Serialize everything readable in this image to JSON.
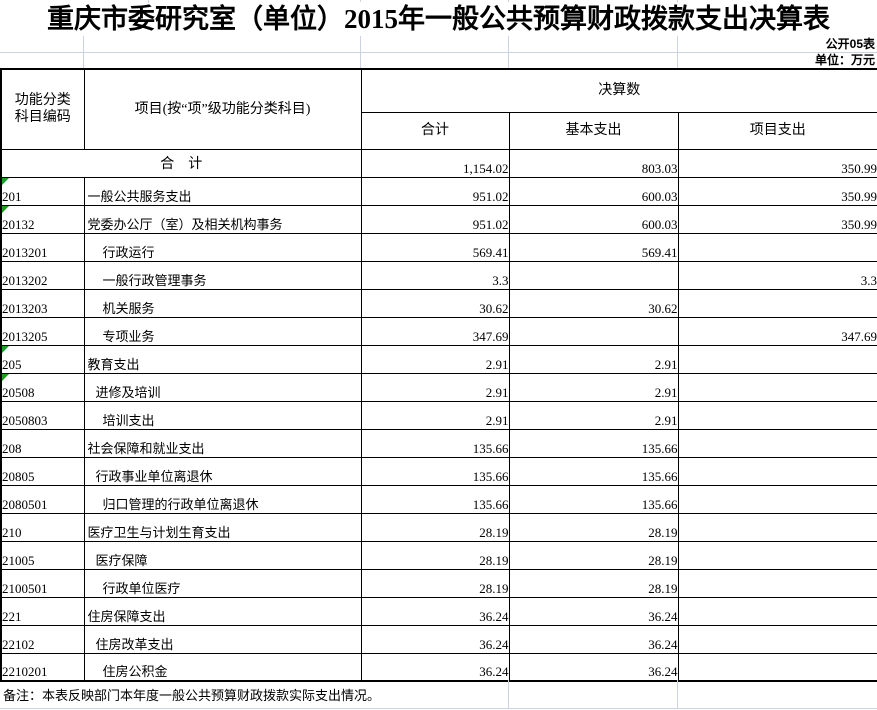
{
  "title": "重庆市委研究室（单位）2015年一般公共预算财政拨款支出决算表",
  "meta": {
    "table_no": "公开05表",
    "unit": "单位：万元"
  },
  "header": {
    "code_line1": "功能分类",
    "code_line2": "科目编码",
    "project": "项目(按“项”级功能分类科目)",
    "final_accounts": "决算数",
    "total": "合计",
    "basic": "基本支出",
    "project_exp": "项目支出"
  },
  "summary_row": {
    "label": "合　计",
    "total": "1,154.02",
    "basic": "803.03",
    "project": "350.99"
  },
  "rows": [
    {
      "code": "201",
      "name": "一般公共服务支出",
      "indent": 0,
      "marker": true,
      "total": "951.02",
      "basic": "600.03",
      "project": "350.99"
    },
    {
      "code": "20132",
      "name": "党委办公厅（室）及相关机构事务",
      "indent": 0,
      "marker": true,
      "total": "951.02",
      "basic": "600.03",
      "project": "350.99"
    },
    {
      "code": "2013201",
      "name": "行政运行",
      "indent": 2,
      "marker": false,
      "total": "569.41",
      "basic": "569.41",
      "project": ""
    },
    {
      "code": "2013202",
      "name": "一般行政管理事务",
      "indent": 2,
      "marker": false,
      "total": "3.3",
      "basic": "",
      "project": "3.3"
    },
    {
      "code": "2013203",
      "name": "机关服务",
      "indent": 2,
      "marker": false,
      "total": "30.62",
      "basic": "30.62",
      "project": ""
    },
    {
      "code": "2013205",
      "name": "专项业务",
      "indent": 2,
      "marker": false,
      "total": "347.69",
      "basic": "",
      "project": "347.69"
    },
    {
      "code": "205",
      "name": "教育支出",
      "indent": 0,
      "marker": true,
      "total": "2.91",
      "basic": "2.91",
      "project": ""
    },
    {
      "code": "20508",
      "name": "进修及培训",
      "indent": 1,
      "marker": true,
      "total": "2.91",
      "basic": "2.91",
      "project": ""
    },
    {
      "code": "2050803",
      "name": "培训支出",
      "indent": 2,
      "marker": false,
      "total": "2.91",
      "basic": "2.91",
      "project": ""
    },
    {
      "code": "208",
      "name": "社会保障和就业支出",
      "indent": 0,
      "marker": false,
      "total": "135.66",
      "basic": "135.66",
      "project": ""
    },
    {
      "code": "20805",
      "name": "行政事业单位离退休",
      "indent": 1,
      "marker": false,
      "total": "135.66",
      "basic": "135.66",
      "project": ""
    },
    {
      "code": "2080501",
      "name": "归口管理的行政单位离退休",
      "indent": 2,
      "marker": false,
      "total": "135.66",
      "basic": "135.66",
      "project": ""
    },
    {
      "code": "210",
      "name": "医疗卫生与计划生育支出",
      "indent": 0,
      "marker": false,
      "total": "28.19",
      "basic": "28.19",
      "project": ""
    },
    {
      "code": "21005",
      "name": "医疗保障",
      "indent": 1,
      "marker": false,
      "total": "28.19",
      "basic": "28.19",
      "project": ""
    },
    {
      "code": "2100501",
      "name": "行政单位医疗",
      "indent": 2,
      "marker": false,
      "total": "28.19",
      "basic": "28.19",
      "project": ""
    },
    {
      "code": "221",
      "name": "住房保障支出",
      "indent": 0,
      "marker": false,
      "total": "36.24",
      "basic": "36.24",
      "project": ""
    },
    {
      "code": "22102",
      "name": "住房改革支出",
      "indent": 1,
      "marker": false,
      "total": "36.24",
      "basic": "36.24",
      "project": ""
    },
    {
      "code": "2210201",
      "name": "住房公积金",
      "indent": 2,
      "marker": false,
      "total": "36.24",
      "basic": "36.24",
      "project": ""
    }
  ],
  "note": "备注：本表反映部门本年度一般公共预算财政拨款实际支出情况。",
  "colors": {
    "marker_green": "#1f9d1f",
    "gridline": "#ccd3e0",
    "border": "#000000"
  }
}
